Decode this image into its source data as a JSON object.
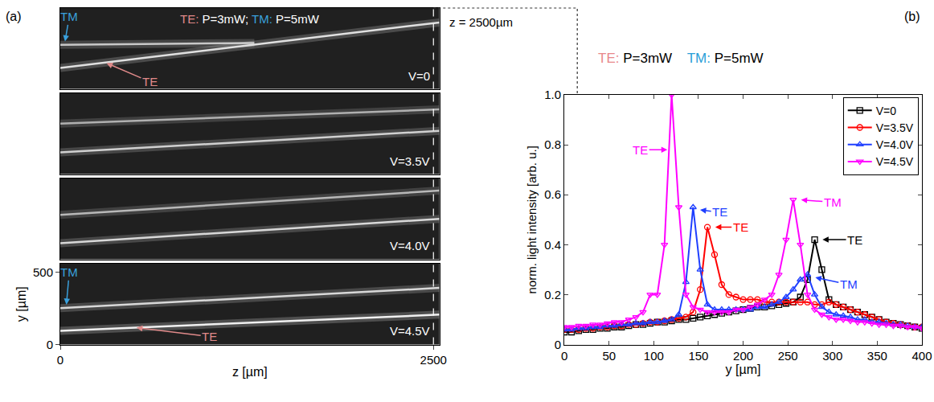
{
  "chart_data": [
    {
      "type": "line",
      "panel": "(a)",
      "title_parts": [
        {
          "text": "TE:",
          "color": "#e08a8a"
        },
        {
          "text": " P=3mW; ",
          "color": "#ffffff"
        },
        {
          "text": "TM:",
          "color": "#3aa0dc"
        },
        {
          "text": " P=5mW",
          "color": "#ffffff"
        }
      ],
      "xlabel": "z [µm]",
      "ylabel": "y [µm]",
      "xlim": [
        0,
        2540
      ],
      "xticks": [
        0,
        2500
      ],
      "ylim": [
        0,
        560
      ],
      "yticks": [
        0,
        500
      ],
      "cut": {
        "z": 2500,
        "label": "z = 2500µm"
      },
      "panels": [
        {
          "label": "V=0",
          "beams": [
            {
              "color": "#c8c8c8",
              "z": [
                0,
                1300
              ],
              "y": [
                305,
                318
              ]
            },
            {
              "color": "#e0e0e0",
              "z": [
                0,
                2540
              ],
              "y": [
                145,
                460
              ]
            }
          ],
          "annotations": [
            {
              "text": "TM",
              "color": "#3aa0dc",
              "x": 60,
              "y": 500,
              "tip_x": 30,
              "tip_y": 318
            },
            {
              "text": "TE",
              "color": "#e08a8a",
              "x": 600,
              "y": 50,
              "tip_x": 300,
              "tip_y": 183
            }
          ]
        },
        {
          "label": "V=3.5V",
          "beams": [
            {
              "color": "#b0b0b0",
              "z": [
                0,
                2540
              ],
              "y": [
                350,
                448
              ]
            },
            {
              "color": "#d0d0d0",
              "z": [
                0,
                2540
              ],
              "y": [
                150,
                300
              ]
            }
          ],
          "annotations": []
        },
        {
          "label": "V=4.0V",
          "beams": [
            {
              "color": "#b8b8b8",
              "z": [
                0,
                2540
              ],
              "y": [
                308,
                476
              ]
            },
            {
              "color": "#d8d8d8",
              "z": [
                0,
                2540
              ],
              "y": [
                112,
                280
              ]
            }
          ],
          "annotations": []
        },
        {
          "label": "V=4.5V",
          "beams": [
            {
              "color": "#d8d8d8",
              "z": [
                0,
                2540
              ],
              "y": [
                252,
                392
              ]
            },
            {
              "color": "#f0f0f0",
              "z": [
                0,
                2540
              ],
              "y": [
                95,
                207
              ]
            }
          ],
          "annotations": [
            {
              "text": "TM",
              "color": "#3aa0dc",
              "x": 60,
              "y": 500,
              "tip_x": 40,
              "tip_y": 265
            },
            {
              "text": "TE",
              "color": "#e08a8a",
              "x": 1000,
              "y": 55,
              "tip_x": 500,
              "tip_y": 118
            }
          ]
        }
      ]
    },
    {
      "type": "line",
      "panel": "(b)",
      "title_parts": [
        {
          "text": "TE: ",
          "color": "#e8888a"
        },
        {
          "text": "P=3mW    ",
          "color": "#000000"
        },
        {
          "text": "TM: ",
          "color": "#2a9fd8"
        },
        {
          "text": "P=5mW",
          "color": "#000000"
        }
      ],
      "xlabel": "y [µm]",
      "ylabel": "norm. light intensity [arb. u.]",
      "xlim": [
        0,
        400
      ],
      "xticks": [
        0,
        50,
        100,
        150,
        200,
        250,
        300,
        350,
        400
      ],
      "ylim": [
        0,
        1
      ],
      "yticks": [
        0,
        0.2,
        0.4,
        0.6,
        0.8,
        {
          "value": 1,
          "label": "1.0"
        }
      ],
      "legend": "upper right",
      "x": [
        0,
        8,
        16,
        24,
        32,
        40,
        48,
        56,
        64,
        72,
        80,
        88,
        96,
        104,
        112,
        120,
        128,
        136,
        144,
        152,
        160,
        168,
        176,
        184,
        192,
        200,
        208,
        216,
        224,
        232,
        240,
        248,
        256,
        264,
        272,
        280,
        288,
        296,
        304,
        312,
        320,
        328,
        336,
        344,
        352,
        360,
        368,
        376,
        384,
        392,
        400
      ],
      "series": [
        {
          "name": "V=0",
          "color": "#000000",
          "marker": "square-open",
          "values": [
            0.05,
            0.05,
            0.055,
            0.06,
            0.06,
            0.065,
            0.065,
            0.07,
            0.07,
            0.075,
            0.08,
            0.08,
            0.085,
            0.09,
            0.09,
            0.095,
            0.1,
            0.1,
            0.105,
            0.11,
            0.115,
            0.12,
            0.125,
            0.13,
            0.135,
            0.14,
            0.145,
            0.15,
            0.15,
            0.155,
            0.16,
            0.165,
            0.17,
            0.19,
            0.26,
            0.42,
            0.3,
            0.18,
            0.16,
            0.15,
            0.14,
            0.13,
            0.12,
            0.11,
            0.1,
            0.09,
            0.085,
            0.08,
            0.075,
            0.07,
            0.065
          ]
        },
        {
          "name": "V=3.5V",
          "color": "#ff0000",
          "marker": "circle-open",
          "values": [
            0.06,
            0.06,
            0.06,
            0.065,
            0.065,
            0.07,
            0.07,
            0.075,
            0.075,
            0.08,
            0.08,
            0.085,
            0.09,
            0.09,
            0.095,
            0.1,
            0.105,
            0.11,
            0.13,
            0.22,
            0.47,
            0.36,
            0.24,
            0.2,
            0.19,
            0.18,
            0.18,
            0.18,
            0.17,
            0.17,
            0.17,
            0.17,
            0.17,
            0.17,
            0.17,
            0.16,
            0.16,
            0.17,
            0.16,
            0.15,
            0.14,
            0.13,
            0.12,
            0.11,
            0.1,
            0.09,
            0.085,
            0.08,
            0.075,
            0.07,
            0.07
          ]
        },
        {
          "name": "V=4.0V",
          "color": "#1f3fff",
          "marker": "triangle-up-open",
          "values": [
            0.06,
            0.06,
            0.065,
            0.065,
            0.07,
            0.07,
            0.075,
            0.075,
            0.08,
            0.08,
            0.085,
            0.085,
            0.09,
            0.09,
            0.095,
            0.1,
            0.12,
            0.25,
            0.55,
            0.3,
            0.16,
            0.14,
            0.14,
            0.14,
            0.14,
            0.14,
            0.14,
            0.15,
            0.15,
            0.16,
            0.17,
            0.19,
            0.22,
            0.26,
            0.28,
            0.2,
            0.15,
            0.13,
            0.12,
            0.115,
            0.11,
            0.1,
            0.1,
            0.09,
            0.09,
            0.085,
            0.08,
            0.08,
            0.075,
            0.07,
            0.07
          ]
        },
        {
          "name": "V=4.5V",
          "color": "#ff00ff",
          "marker": "triangle-down-open",
          "values": [
            0.07,
            0.07,
            0.075,
            0.075,
            0.08,
            0.08,
            0.085,
            0.09,
            0.09,
            0.1,
            0.11,
            0.13,
            0.2,
            0.2,
            0.4,
            1.0,
            0.55,
            0.2,
            0.15,
            0.14,
            0.13,
            0.13,
            0.13,
            0.13,
            0.14,
            0.14,
            0.15,
            0.16,
            0.18,
            0.2,
            0.28,
            0.42,
            0.58,
            0.4,
            0.2,
            0.14,
            0.12,
            0.11,
            0.1,
            0.1,
            0.095,
            0.09,
            0.09,
            0.085,
            0.08,
            0.08,
            0.075,
            0.075,
            0.07,
            0.07,
            0.065
          ]
        }
      ],
      "annotations": [
        {
          "text": "TE",
          "color": "#ff00ff",
          "x": 85,
          "y": 0.78,
          "tip_x": 117,
          "tip_y": 0.78
        },
        {
          "text": "TE",
          "color": "#1f3fff",
          "x": 174,
          "y": 0.53,
          "tip_x": 150,
          "tip_y": 0.54
        },
        {
          "text": "TE",
          "color": "#ff0000",
          "x": 197,
          "y": 0.47,
          "tip_x": 167,
          "tip_y": 0.47
        },
        {
          "text": "TM",
          "color": "#ff00ff",
          "x": 300,
          "y": 0.57,
          "tip_x": 263,
          "tip_y": 0.58
        },
        {
          "text": "TE",
          "color": "#000000",
          "x": 325,
          "y": 0.42,
          "tip_x": 287,
          "tip_y": 0.42
        },
        {
          "text": "TM",
          "color": "#1f3fff",
          "x": 318,
          "y": 0.24,
          "tip_x": 279,
          "tip_y": 0.27
        }
      ]
    }
  ]
}
